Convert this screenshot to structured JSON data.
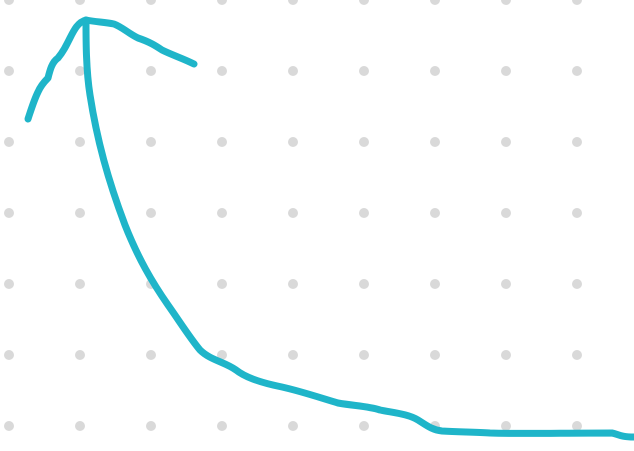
{
  "canvas": {
    "background": "#ffffff",
    "grid": {
      "style": "dot-grid",
      "dot_color": "#d9d9d9"
    }
  },
  "strokes": [
    {
      "name": "arrow-shaft-curve",
      "tool": "pen",
      "color": "#1fb5c9"
    },
    {
      "name": "arrowhead-left-stroke",
      "tool": "pen",
      "color": "#1fb5c9"
    },
    {
      "name": "arrowhead-right-stroke",
      "tool": "pen",
      "color": "#1fb5c9"
    }
  ]
}
